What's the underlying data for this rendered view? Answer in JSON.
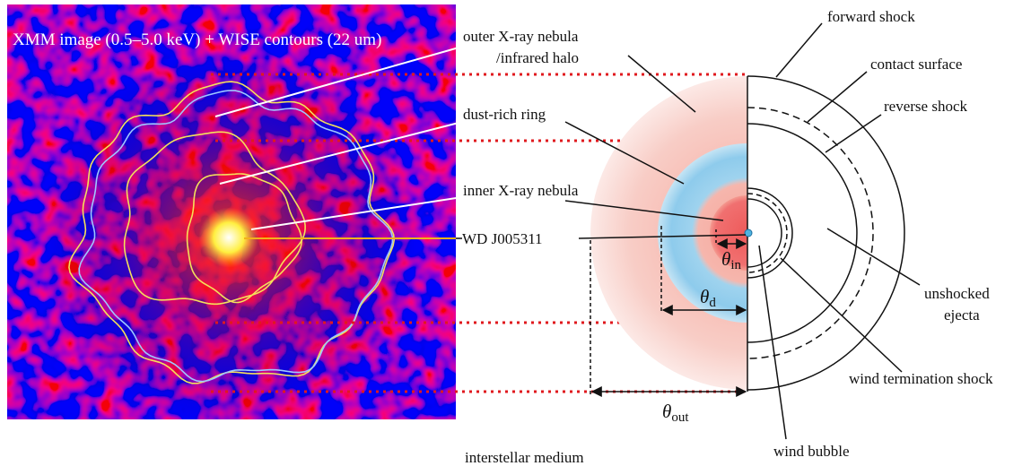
{
  "image": {
    "title": "XMM image (0.5–5.0 keV) + WISE contours (22 um)"
  },
  "labels": {
    "outer_nebula": "outer X-ray nebula",
    "outer_nebula_2": "/infrared halo",
    "dust_ring": "dust-rich ring",
    "inner_nebula": "inner X-ray nebula",
    "star": "WD J005311",
    "ism": "interstellar medium",
    "forward_shock": "forward shock",
    "contact_surface": "contact surface",
    "reverse_shock": "reverse shock",
    "ejecta": "unshocked",
    "ejecta_2": "ejecta",
    "termination_shock": "wind termination shock",
    "wind_bubble": "wind bubble"
  },
  "angles": {
    "symbol": "θ",
    "inner": "in",
    "dust": "d",
    "outer": "out"
  }
}
